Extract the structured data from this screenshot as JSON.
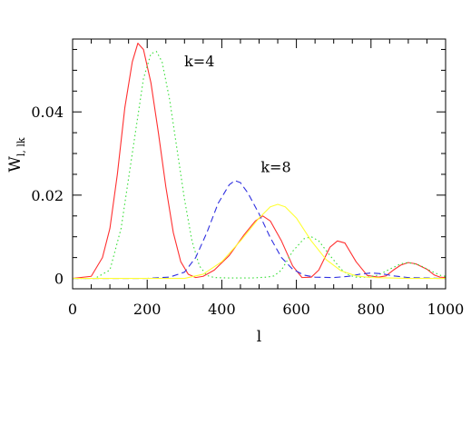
{
  "chart_data": {
    "type": "line",
    "title": "",
    "xlabel": "l",
    "ylabel": "W",
    "ylabel_sub": "l, lk",
    "xlim": [
      0,
      1000
    ],
    "ylim": [
      -0.0025,
      0.0575
    ],
    "xticks": [
      0,
      200,
      400,
      600,
      800,
      1000
    ],
    "xtick_labels": [
      "0",
      "200",
      "400",
      "600",
      "800",
      "1000"
    ],
    "yticks": [
      0,
      0.02,
      0.04
    ],
    "ytick_labels": [
      "0",
      "0.02",
      "0.04"
    ],
    "grid": false,
    "annotations": [
      {
        "text": "k=4",
        "x": 340,
        "y": 0.051
      },
      {
        "text": "k=8",
        "x": 545,
        "y": 0.0255
      }
    ],
    "series": [
      {
        "style": "solid",
        "color": "#ff3030",
        "points": [
          [
            0,
            0
          ],
          [
            50,
            0.0005
          ],
          [
            80,
            0.005
          ],
          [
            100,
            0.012
          ],
          [
            120,
            0.025
          ],
          [
            140,
            0.041
          ],
          [
            160,
            0.052
          ],
          [
            175,
            0.0565
          ],
          [
            190,
            0.055
          ],
          [
            210,
            0.047
          ],
          [
            230,
            0.035
          ],
          [
            250,
            0.022
          ],
          [
            270,
            0.011
          ],
          [
            290,
            0.004
          ],
          [
            310,
            0.001
          ],
          [
            330,
            0.0002
          ],
          [
            350,
            0.0005
          ],
          [
            380,
            0.002
          ],
          [
            420,
            0.0055
          ],
          [
            460,
            0.0105
          ],
          [
            490,
            0.0138
          ],
          [
            510,
            0.015
          ],
          [
            530,
            0.0138
          ],
          [
            560,
            0.009
          ],
          [
            590,
            0.003
          ],
          [
            615,
            0.0002
          ],
          [
            640,
            0.0003
          ],
          [
            660,
            0.002
          ],
          [
            690,
            0.0075
          ],
          [
            710,
            0.009
          ],
          [
            730,
            0.0085
          ],
          [
            760,
            0.004
          ],
          [
            790,
            0.0007
          ],
          [
            820,
            0.0003
          ],
          [
            840,
            0.0006
          ],
          [
            860,
            0.002
          ],
          [
            880,
            0.0032
          ],
          [
            900,
            0.0038
          ],
          [
            920,
            0.0035
          ],
          [
            950,
            0.0022
          ],
          [
            970,
            0.0008
          ],
          [
            985,
            0.0003
          ],
          [
            1000,
            0.0002
          ]
        ]
      },
      {
        "style": "dotted",
        "color": "#33dd33",
        "points": [
          [
            0,
            0
          ],
          [
            60,
            0
          ],
          [
            100,
            0.002
          ],
          [
            130,
            0.012
          ],
          [
            160,
            0.03
          ],
          [
            190,
            0.048
          ],
          [
            210,
            0.054
          ],
          [
            225,
            0.0545
          ],
          [
            240,
            0.052
          ],
          [
            260,
            0.043
          ],
          [
            280,
            0.031
          ],
          [
            300,
            0.019
          ],
          [
            320,
            0.009
          ],
          [
            340,
            0.003
          ],
          [
            360,
            0.0007
          ],
          [
            380,
            0.0002
          ],
          [
            420,
            0.0001
          ],
          [
            450,
            0.0001
          ],
          [
            480,
            0.0001
          ],
          [
            520,
            0.0003
          ],
          [
            540,
            0.0006
          ],
          [
            560,
            0.002
          ],
          [
            590,
            0.0065
          ],
          [
            620,
            0.0095
          ],
          [
            640,
            0.01
          ],
          [
            660,
            0.009
          ],
          [
            690,
            0.0055
          ],
          [
            720,
            0.0022
          ],
          [
            740,
            0.0008
          ],
          [
            760,
            0.0003
          ],
          [
            790,
            0.0003
          ],
          [
            820,
            0.0008
          ],
          [
            850,
            0.0022
          ],
          [
            880,
            0.0035
          ],
          [
            900,
            0.0038
          ],
          [
            930,
            0.0032
          ],
          [
            960,
            0.0018
          ],
          [
            990,
            0.0006
          ],
          [
            1000,
            0.0005
          ]
        ]
      },
      {
        "style": "dashed",
        "color": "#3030e0",
        "points": [
          [
            0,
            0
          ],
          [
            200,
            0
          ],
          [
            260,
            0.0003
          ],
          [
            300,
            0.0015
          ],
          [
            330,
            0.005
          ],
          [
            360,
            0.011
          ],
          [
            390,
            0.018
          ],
          [
            420,
            0.0225
          ],
          [
            435,
            0.0235
          ],
          [
            450,
            0.023
          ],
          [
            470,
            0.0205
          ],
          [
            500,
            0.0155
          ],
          [
            530,
            0.0098
          ],
          [
            560,
            0.005
          ],
          [
            590,
            0.0022
          ],
          [
            620,
            0.0008
          ],
          [
            650,
            0.0003
          ],
          [
            700,
            0.0002
          ],
          [
            740,
            0.0005
          ],
          [
            770,
            0.001
          ],
          [
            800,
            0.0013
          ],
          [
            830,
            0.0011
          ],
          [
            860,
            0.0006
          ],
          [
            900,
            0.0002
          ],
          [
            950,
            0.0001
          ],
          [
            1000,
            0
          ]
        ]
      },
      {
        "style": "solid",
        "color": "#ffff33",
        "points": [
          [
            0,
            0
          ],
          [
            300,
            0
          ],
          [
            350,
            0.001
          ],
          [
            400,
            0.004
          ],
          [
            450,
            0.009
          ],
          [
            500,
            0.0145
          ],
          [
            530,
            0.0172
          ],
          [
            550,
            0.0178
          ],
          [
            570,
            0.0172
          ],
          [
            600,
            0.0145
          ],
          [
            640,
            0.009
          ],
          [
            680,
            0.0045
          ],
          [
            720,
            0.0018
          ],
          [
            760,
            0.0006
          ],
          [
            800,
            0.0002
          ],
          [
            850,
            0.0001
          ],
          [
            900,
            0
          ],
          [
            1000,
            0
          ]
        ]
      }
    ]
  }
}
